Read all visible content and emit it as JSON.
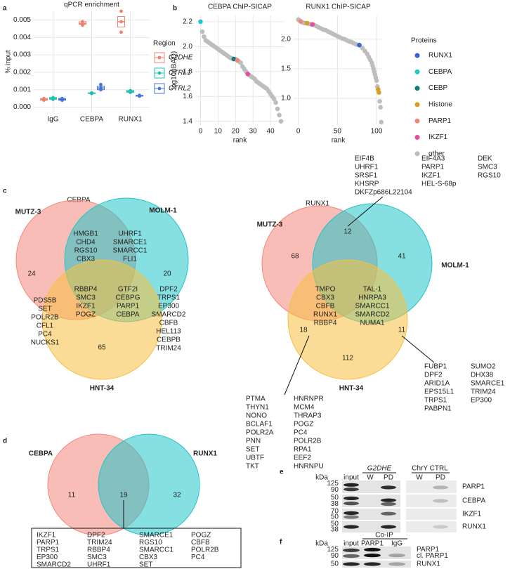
{
  "panel_labels": [
    "a",
    "b",
    "c",
    "d",
    "e",
    "f"
  ],
  "chart_data": [
    {
      "type": "box",
      "title": "qPCR enrichment",
      "y_label": "% input",
      "categories": [
        "IgG",
        "CEBPA",
        "RUNX1"
      ],
      "legend_title": "Region",
      "grid": true,
      "ylim": [
        -0.0003,
        0.0055
      ],
      "yticks": [
        {
          "value": 0,
          "label": "0.000"
        },
        {
          "value": 0.001,
          "label": "0.001"
        },
        {
          "value": 0.002,
          "label": "0.002"
        },
        {
          "value": 0.003,
          "label": "0.003"
        },
        {
          "value": 0.004,
          "label": "0.004"
        },
        {
          "value": 0.005,
          "label": "0.005"
        }
      ],
      "series": [
        {
          "name": "G2DHE",
          "color": "#f08070",
          "values": [
            0.00045,
            0.0048,
            0.0049
          ],
          "q1": [
            0.0004,
            0.00475,
            0.0046
          ],
          "q3": [
            0.0005,
            0.0049,
            0.0052
          ],
          "points": [
            [
              0.0004,
              0.00045,
              0.0005
            ],
            [
              0.0047,
              0.0048,
              0.0049
            ],
            [
              0.0043,
              0.0049,
              0.0055
            ]
          ]
        },
        {
          "name": "CTRL1",
          "color": "#1fc0b4",
          "values": [
            0.0005,
            0.0008,
            0.0009
          ],
          "q1": [
            0.00045,
            0.00078,
            0.00085
          ],
          "q3": [
            0.00055,
            0.00082,
            0.00095
          ],
          "points": [
            [
              0.00045,
              0.0005,
              0.00055
            ],
            [
              0.00078,
              0.0008,
              0.00082
            ],
            [
              0.00085,
              0.0009,
              0.00095
            ]
          ]
        },
        {
          "name": "CTRL2",
          "color": "#4a72dc",
          "values": [
            0.00045,
            0.0011,
            0.00065
          ],
          "q1": [
            0.0004,
            0.001,
            0.00063
          ],
          "q3": [
            0.0005,
            0.0012,
            0.00068
          ],
          "points": [
            [
              0.0004,
              0.00045,
              0.0005
            ],
            [
              0.001,
              0.0011,
              0.0013
            ],
            [
              0.00063,
              0.00065,
              0.00068
            ]
          ]
        }
      ]
    },
    {
      "type": "scatter",
      "title": "CEBPA ChIP-SICAP",
      "x_label": "rank",
      "y_label": "log10(iBAQ)",
      "grid": true,
      "xlim": [
        -3,
        48
      ],
      "xticks": [
        0,
        10,
        20,
        30,
        40
      ],
      "ylim": [
        1.37,
        2.25
      ],
      "yticks": [
        1.4,
        1.6,
        1.8,
        {
          "value": 2,
          "label": "2.0"
        },
        2.2
      ],
      "series": [
        {
          "color": "#bdbdbd",
          "x": [
            1,
            2,
            3,
            4,
            5,
            6,
            7,
            8,
            9,
            10,
            11,
            12,
            13,
            14,
            15,
            16,
            17,
            18,
            20,
            22,
            23,
            24,
            25,
            26,
            28,
            29,
            30,
            31,
            32,
            33,
            34,
            35,
            36,
            37,
            38,
            39,
            40,
            41,
            42,
            43,
            44,
            45,
            46
          ],
          "values": [
            2.12,
            2.08,
            2.05,
            2.04,
            2.03,
            2.02,
            2.01,
            2.0,
            1.99,
            1.98,
            1.97,
            1.96,
            1.95,
            1.94,
            1.93,
            1.92,
            1.91,
            1.905,
            1.9,
            1.88,
            1.87,
            1.84,
            1.82,
            1.8,
            1.77,
            1.76,
            1.75,
            1.74,
            1.72,
            1.71,
            1.7,
            1.69,
            1.68,
            1.67,
            1.66,
            1.64,
            1.62,
            1.6,
            1.58,
            1.55,
            1.5,
            1.45,
            1.4
          ]
        },
        {
          "color": "#1ec8c8",
          "x": [
            0
          ],
          "values": [
            2.2
          ]
        },
        {
          "color": "#117a7a",
          "x": [
            19
          ],
          "values": [
            1.9
          ]
        },
        {
          "color": "#f08878",
          "x": [
            21
          ],
          "values": [
            1.89
          ]
        },
        {
          "color": "#e84ca0",
          "x": [
            27
          ],
          "values": [
            1.78
          ]
        }
      ]
    },
    {
      "type": "scatter",
      "title": "RUNX1 ChIP-SICAP",
      "x_label": "rank",
      "legend_title": "Proteins",
      "grid": true,
      "xlim": [
        -6,
        108
      ],
      "xticks": [
        0,
        50,
        100
      ],
      "ylim": [
        0.55,
        2.4
      ],
      "yticks": [
        {
          "value": 1,
          "label": "1.0"
        },
        1.5,
        {
          "value": 2,
          "label": "2.0"
        }
      ],
      "series": [
        {
          "name": "RUNX1",
          "color": "#3a5fd8",
          "x": [
            78
          ],
          "values": [
            1.9
          ]
        },
        {
          "name": "CEBPA",
          "color": "#1ec8c8",
          "x": [],
          "values": []
        },
        {
          "name": "CEBP",
          "color": "#117a7a",
          "x": [],
          "values": []
        },
        {
          "name": "Histone",
          "color": "#d4a020",
          "x": [
            11,
            102,
            103
          ],
          "values": [
            2.27,
            1.15,
            1.1
          ]
        },
        {
          "name": "PARP1",
          "color": "#f08878",
          "x": [
            3
          ],
          "values": [
            2.3
          ]
        },
        {
          "name": "IKZF1",
          "color": "#e84ca0",
          "x": [
            18
          ],
          "values": [
            2.25
          ]
        },
        {
          "name": "other",
          "color": "#bdbdbd",
          "x": [
            0,
            1,
            2,
            4,
            6,
            8,
            13,
            16,
            20,
            23,
            26,
            29,
            32,
            35,
            38,
            41,
            44,
            47,
            50,
            53,
            56,
            59,
            62,
            65,
            68,
            71,
            74,
            82,
            85,
            88,
            90,
            92,
            94,
            95,
            96,
            97,
            98,
            99,
            100,
            101,
            104,
            105,
            106
          ],
          "values": [
            2.33,
            2.32,
            2.31,
            2.29,
            2.28,
            2.27,
            2.26,
            2.25,
            2.24,
            2.22,
            2.2,
            2.18,
            2.16,
            2.15,
            2.13,
            2.11,
            2.09,
            2.07,
            2.05,
            2.03,
            2.01,
            2.0,
            1.98,
            1.96,
            1.95,
            1.93,
            1.91,
            1.85,
            1.8,
            1.75,
            1.7,
            1.65,
            1.6,
            1.55,
            1.5,
            1.45,
            1.4,
            1.35,
            1.3,
            1.2,
            0.95,
            0.85,
            0.6
          ]
        }
      ]
    }
  ],
  "venn_cebpa": {
    "title": "CEBPA",
    "sets": [
      {
        "name": "MUTZ-3",
        "color": "#f4877c"
      },
      {
        "name": "MOLM-1",
        "color": "#22c4c8"
      },
      {
        "name": "HNT-34",
        "color": "#f8c040"
      }
    ],
    "counts": [
      24,
      20,
      65
    ],
    "lists": [
      [
        "HMGB1",
        "CHD4",
        "RGS10",
        "CBX3"
      ],
      [
        "UHRF1",
        "SMARCE1",
        "SMARCC1",
        "FLI1"
      ],
      [
        "RBBP4",
        "SMC3",
        {
          "text": "IKZF1",
          "color": "#e8202a"
        },
        "POGZ"
      ],
      [
        "GTF2I",
        "CEBPG",
        {
          "text": "PARP1",
          "color": "#e8202a"
        },
        {
          "text": "CEBPA",
          "color": "#e8202a"
        }
      ],
      [
        "PDS5B",
        "SET",
        "POLR2B",
        "CFL1",
        "PC4",
        "NUCKS1"
      ],
      [
        "DPF2",
        "TRPS1",
        "EP300",
        "SMARCD2",
        "CBFB",
        "HEL113",
        "CEBPB",
        "TRIM24"
      ]
    ]
  },
  "venn_runx1": {
    "title": "RUNX1",
    "sets": [
      {
        "name": "MUTZ-3",
        "color": "#f4877c"
      },
      {
        "name": "MOLM-1",
        "color": "#22c4c8"
      },
      {
        "name": "HNT-34",
        "color": "#f8c040"
      }
    ],
    "counts": [
      68,
      12,
      41,
      18,
      112,
      11
    ],
    "lists": [
      [
        "TMPO",
        "CBX3",
        "CBFB",
        {
          "text": "RUNX1",
          "color": "#e8202a"
        },
        "RBBP4"
      ],
      [
        "TAL-1",
        "HNRPA3",
        "SMARCC1",
        "SMARCD2",
        "NUMA1"
      ],
      [
        "EIF4B",
        "UHRF1",
        "SRSF1",
        "KHSRP",
        "DKFZp686L22104"
      ],
      [
        "EIF4A3",
        {
          "text": "PARP1",
          "color": "#e8202a"
        },
        {
          "text": "IKZF1",
          "color": "#e8202a"
        },
        "HEL-S-68p"
      ],
      [
        "DEK",
        "SMC3",
        "RGS10"
      ],
      [
        "PTMA",
        "THYN1",
        "NONO",
        "BCLAF1",
        "POLR2A",
        "PNN",
        "SET",
        "UBTF",
        "TKT"
      ],
      [
        "HNRNPR",
        "MCM4",
        "THRAP3",
        "POGZ",
        "PC4",
        "POLR2B",
        "RPA1",
        "EEF2",
        "HNRNPU"
      ],
      [
        "FUBP1",
        "DPF2",
        "ARID1A",
        "EPS15L1",
        "TRPS1",
        "PABPN1"
      ],
      [
        "SUMO2",
        "DHX38",
        "SMARCE1",
        "TRIM24",
        "EP300"
      ]
    ]
  },
  "venn_overlap": {
    "sets": [
      {
        "name": "CEBPA",
        "color": "#f4877c"
      },
      {
        "name": "RUNX1",
        "color": "#22c4c8"
      }
    ],
    "counts": [
      11,
      19,
      32
    ],
    "lists": [
      [
        {
          "text": "IKZF1",
          "color": "#e8202a"
        },
        {
          "text": "PARP1",
          "color": "#e8202a"
        },
        "TRPS1",
        "EP300",
        "SMARCD2"
      ],
      [
        "DPF2",
        "TRIM24",
        "RBBP4",
        "SMC3",
        "UHRF1"
      ],
      [
        "SMARCE1",
        "RGS10",
        "SMARCC1",
        "CBX3",
        "SET"
      ],
      [
        "POGZ",
        "CBFB",
        "POLR2B",
        "PC4"
      ]
    ]
  },
  "blot_e": {
    "kda": "kDa",
    "groups": [
      {
        "label": "G2DHE",
        "italic": true
      },
      {
        "label": "ChrY CTRL",
        "italic": false
      }
    ],
    "lanes": [
      "input",
      "W",
      "PD",
      "W",
      "PD"
    ],
    "rows": [
      {
        "protein": "PARP1",
        "markers": [
          125,
          90
        ]
      },
      {
        "protein": "CEBPA",
        "markers": [
          50,
          38
        ]
      },
      {
        "protein": "IKZF1",
        "markers": [
          70,
          50
        ]
      },
      {
        "protein": "RUNX1",
        "markers": [
          50,
          38
        ]
      }
    ]
  },
  "blot_f": {
    "kda": "kDa",
    "group": "Co-IP",
    "lanes": [
      "input",
      "PARP1",
      "IgG"
    ],
    "rows": [
      {
        "proteins": [
          "PARP1",
          "cl. PARP1"
        ],
        "markers": [
          125,
          90
        ]
      },
      {
        "proteins": [
          "RUNX1"
        ],
        "markers": [
          50
        ]
      }
    ]
  }
}
